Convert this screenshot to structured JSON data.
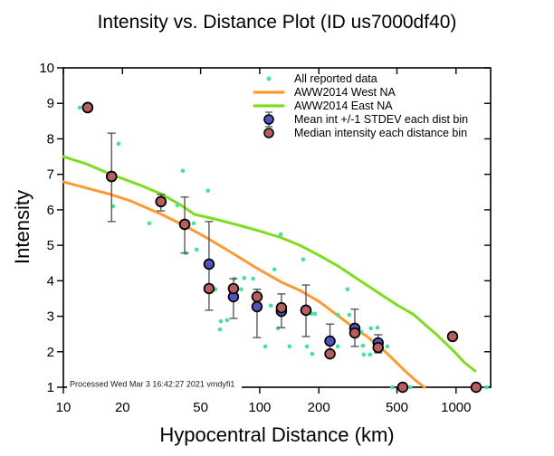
{
  "title": "Intensity vs. Distance Plot (ID us7000df40)",
  "event_id": "us7000df40",
  "footer": {
    "processed_note": "Processed Wed Mar 3 16:42:27 2021 vmdyfi1"
  },
  "legend": {
    "items": [
      {
        "label": "All reported data"
      },
      {
        "label": "AWW2014 West NA"
      },
      {
        "label": "AWW2014 East NA"
      },
      {
        "label": "Mean int +/-1 STDEV each dist bin"
      },
      {
        "label": "Median intensity each distance bin"
      }
    ]
  },
  "colors": {
    "background": "#ffffff",
    "axis": "#000000",
    "error_bar": "#4d4d4d",
    "reported_data": "#45e0a2",
    "west_na": "#ff9933",
    "east_na": "#7edd20",
    "mean_bin": "#5353c0",
    "median_bin": "#b65e5e"
  },
  "chart_data": {
    "type": "scatter",
    "title": "Intensity vs. Distance Plot (ID us7000df40)",
    "xlabel": "Hypocentral Distance (km)",
    "ylabel": "Intensity",
    "x_scale": "log",
    "xlim": [
      10,
      1500
    ],
    "ylim": [
      1,
      10
    ],
    "x_ticks": [
      10,
      20,
      50,
      100,
      200,
      500,
      1000
    ],
    "y_ticks": [
      1,
      2,
      3,
      4,
      5,
      6,
      7,
      8,
      9,
      10
    ],
    "grid": false,
    "legend_position": "top-center-inside",
    "series": [
      {
        "name": "All reported data",
        "type": "scatter",
        "color": "#45e0a2",
        "points": [
          [
            12.1,
            8.88
          ],
          [
            19.1,
            7.86
          ],
          [
            17.9,
            6.1
          ],
          [
            40.6,
            7.1
          ],
          [
            38.1,
            6.13
          ],
          [
            54.5,
            6.54
          ],
          [
            27.4,
            5.62
          ],
          [
            46.1,
            5.62
          ],
          [
            41.9,
            4.78
          ],
          [
            47.7,
            4.88
          ],
          [
            59.5,
            3.76
          ],
          [
            63.4,
            2.86
          ],
          [
            68.2,
            2.89
          ],
          [
            62.7,
            2.63
          ],
          [
            74.3,
            4.06
          ],
          [
            83.4,
            4.08
          ],
          [
            92.6,
            4.06
          ],
          [
            80.5,
            3.76
          ],
          [
            113.8,
            3.3
          ],
          [
            118.8,
            4.32
          ],
          [
            127.9,
            5.31
          ],
          [
            166.5,
            4.6
          ],
          [
            123.8,
            2.66
          ],
          [
            106.7,
            2.15
          ],
          [
            141.9,
            2.15
          ],
          [
            173.9,
            2.15
          ],
          [
            185,
            1.94
          ],
          [
            183.4,
            3.07
          ],
          [
            191.3,
            3.07
          ],
          [
            249.5,
            3.04
          ],
          [
            249.5,
            2.15
          ],
          [
            279.9,
            3.76
          ],
          [
            285.9,
            3.04
          ],
          [
            328.3,
            2.56
          ],
          [
            335.3,
            2.17
          ],
          [
            338.9,
            1.92
          ],
          [
            364.4,
            1.92
          ],
          [
            368.3,
            2.66
          ],
          [
            397.4,
            2.68
          ],
          [
            446.7,
            2.15
          ],
          [
            473,
            1.0
          ],
          [
            585,
            1.0
          ],
          [
            1430,
            1.0
          ]
        ]
      },
      {
        "name": "AWW2014 West NA",
        "type": "line",
        "color": "#ff9933",
        "points": [
          [
            10,
            6.79
          ],
          [
            13,
            6.62
          ],
          [
            17.5,
            6.43
          ],
          [
            22,
            6.25
          ],
          [
            31.4,
            5.88
          ],
          [
            41.5,
            5.55
          ],
          [
            55,
            5.18
          ],
          [
            74,
            4.75
          ],
          [
            97,
            4.35
          ],
          [
            130,
            3.95
          ],
          [
            160,
            3.73
          ],
          [
            200,
            3.42
          ],
          [
            250,
            3.02
          ],
          [
            305,
            2.66
          ],
          [
            350,
            2.44
          ],
          [
            400,
            2.18
          ],
          [
            450,
            1.93
          ],
          [
            500,
            1.68
          ],
          [
            560,
            1.42
          ],
          [
            620,
            1.2
          ],
          [
            690,
            1.0
          ]
        ]
      },
      {
        "name": "AWW2014 East NA",
        "type": "line",
        "color": "#7edd20",
        "points": [
          [
            10,
            7.5
          ],
          [
            13,
            7.3
          ],
          [
            17.5,
            7.0
          ],
          [
            25,
            6.68
          ],
          [
            31.4,
            6.45
          ],
          [
            40,
            6.12
          ],
          [
            46.6,
            5.87
          ],
          [
            55,
            5.78
          ],
          [
            66,
            5.67
          ],
          [
            80,
            5.55
          ],
          [
            100,
            5.4
          ],
          [
            128,
            5.22
          ],
          [
            160,
            5.0
          ],
          [
            200,
            4.72
          ],
          [
            250,
            4.42
          ],
          [
            305,
            4.1
          ],
          [
            400,
            3.67
          ],
          [
            500,
            3.32
          ],
          [
            608,
            3.05
          ],
          [
            700,
            2.75
          ],
          [
            800,
            2.47
          ],
          [
            900,
            2.2
          ],
          [
            1000,
            1.95
          ],
          [
            1100,
            1.7
          ],
          [
            1250,
            1.46
          ]
        ]
      },
      {
        "name": "Mean int +/-1 STDEV each dist bin",
        "type": "scatter-errorbar",
        "color": "#5353c0",
        "marker": "circle-errorbar"
      },
      {
        "name": "Median intensity each distance bin",
        "type": "scatter",
        "color": "#b65e5e",
        "marker": "circle"
      }
    ],
    "distance_bins": [
      {
        "distance": 13.3,
        "mean": 8.88,
        "median": 8.88,
        "stdev_lo": null,
        "stdev_hi": null
      },
      {
        "distance": 17.6,
        "mean": 6.94,
        "median": 6.94,
        "stdev_lo": 5.67,
        "stdev_hi": 8.16
      },
      {
        "distance": 31.4,
        "mean": 6.23,
        "median": 6.23,
        "stdev_lo": 5.97,
        "stdev_hi": 6.43
      },
      {
        "distance": 41.5,
        "mean": 5.59,
        "median": 5.59,
        "stdev_lo": 4.78,
        "stdev_hi": 6.36
      },
      {
        "distance": 55.2,
        "mean": 4.47,
        "median": 3.78,
        "stdev_lo": 3.17,
        "stdev_hi": 5.67
      },
      {
        "distance": 73.5,
        "mean": 3.55,
        "median": 3.78,
        "stdev_lo": 2.94,
        "stdev_hi": 4.06
      },
      {
        "distance": 96.9,
        "mean": 3.27,
        "median": 3.55,
        "stdev_lo": 2.4,
        "stdev_hi": 3.76
      },
      {
        "distance": 129,
        "mean": 3.14,
        "median": 3.24,
        "stdev_lo": 2.68,
        "stdev_hi": 3.63
      },
      {
        "distance": 172,
        "mean": 3.17,
        "median": 3.17,
        "stdev_lo": 2.43,
        "stdev_hi": 3.88
      },
      {
        "distance": 228,
        "mean": 2.3,
        "median": 1.94,
        "stdev_lo": 1.85,
        "stdev_hi": 2.78
      },
      {
        "distance": 305,
        "mean": 2.66,
        "median": 2.53,
        "stdev_lo": 2.15,
        "stdev_hi": 3.2
      },
      {
        "distance": 401,
        "mean": 2.25,
        "median": 2.12,
        "stdev_lo": 1.97,
        "stdev_hi": 2.48
      },
      {
        "distance": 535,
        "mean": null,
        "median": 1.0,
        "stdev_lo": null,
        "stdev_hi": null
      },
      {
        "distance": 960,
        "mean": null,
        "median": 2.43,
        "stdev_lo": null,
        "stdev_hi": null
      },
      {
        "distance": 1265,
        "mean": null,
        "median": 1.0,
        "stdev_lo": null,
        "stdev_hi": null
      }
    ]
  }
}
